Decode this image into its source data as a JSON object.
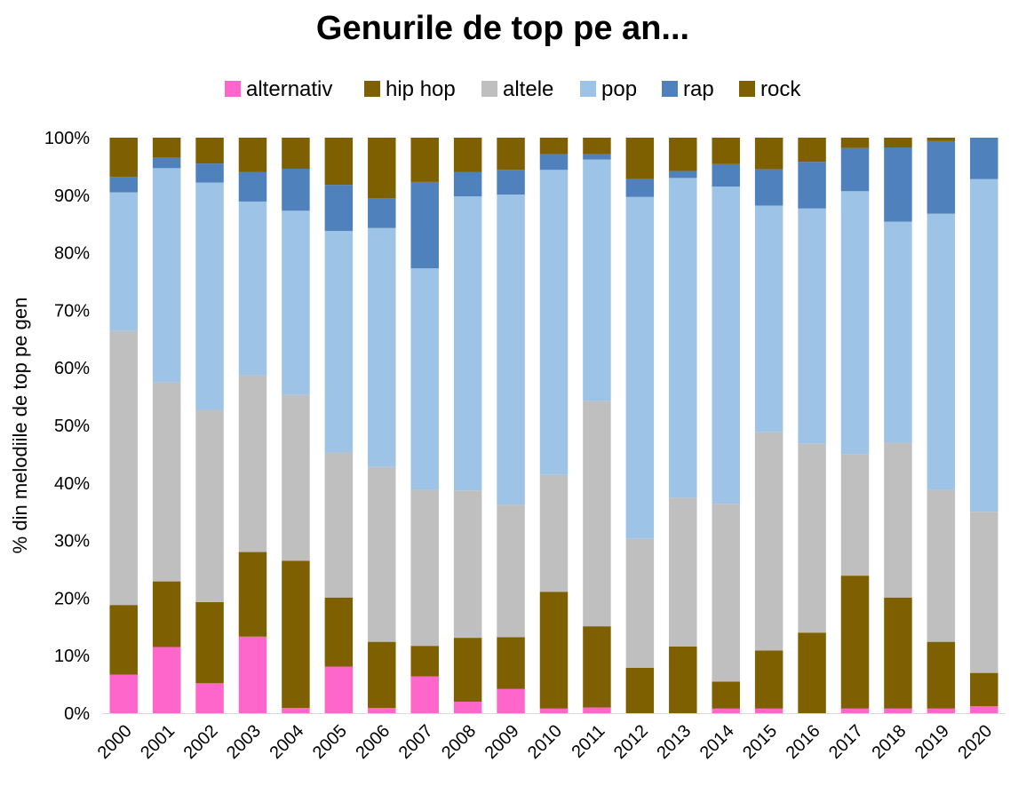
{
  "chart_data": {
    "type": "bar",
    "stacked": true,
    "title": "Genurile de top pe an...",
    "ylabel": "% din melodiile de top pe gen",
    "xlabel": "",
    "ylim": [
      0,
      100
    ],
    "yticks": [
      "0%",
      "10%",
      "20%",
      "30%",
      "40%",
      "50%",
      "60%",
      "70%",
      "80%",
      "90%",
      "100%"
    ],
    "legend_position": "top",
    "grid": false,
    "categories": [
      "2000",
      "2001",
      "2002",
      "2003",
      "2004",
      "2005",
      "2006",
      "2007",
      "2008",
      "2009",
      "2010",
      "2011",
      "2012",
      "2013",
      "2014",
      "2015",
      "2016",
      "2017",
      "2018",
      "2019",
      "2020"
    ],
    "series": [
      {
        "name": "alternativ",
        "color": "#ff66cc",
        "values": [
          6.7,
          11.5,
          5.2,
          13.3,
          0.9,
          8.1,
          0.9,
          6.4,
          2.0,
          4.2,
          0.8,
          1.0,
          0.0,
          0.0,
          0.8,
          0.8,
          0.0,
          0.8,
          0.8,
          0.8,
          1.2
        ]
      },
      {
        "name": "hip hop",
        "color": "#7f6000",
        "values": [
          12.1,
          11.4,
          14.1,
          14.7,
          25.6,
          12.0,
          11.5,
          5.3,
          11.1,
          9.0,
          20.3,
          14.1,
          7.9,
          11.6,
          4.7,
          10.1,
          14.0,
          23.1,
          19.3,
          11.6,
          5.8
        ]
      },
      {
        "name": "altele",
        "color": "#bfbfbf",
        "values": [
          47.6,
          34.6,
          33.4,
          30.7,
          28.8,
          25.2,
          30.4,
          27.1,
          25.6,
          23.0,
          20.3,
          39.1,
          22.4,
          25.8,
          30.9,
          37.9,
          32.8,
          21.1,
          26.9,
          26.4,
          28.0
        ]
      },
      {
        "name": "pop",
        "color": "#9dc3e6",
        "values": [
          24.1,
          37.2,
          39.5,
          30.2,
          32.0,
          38.5,
          41.5,
          38.5,
          51.1,
          53.9,
          53.0,
          42.0,
          59.4,
          55.6,
          55.1,
          39.4,
          40.9,
          45.7,
          38.4,
          48.0,
          57.8
        ]
      },
      {
        "name": "rap",
        "color": "#4f81bd",
        "values": [
          2.7,
          1.8,
          3.3,
          5.1,
          7.3,
          8.0,
          5.2,
          15.0,
          4.2,
          4.3,
          2.7,
          0.9,
          3.1,
          1.2,
          3.9,
          6.3,
          8.1,
          7.5,
          12.9,
          12.6,
          7.2
        ]
      },
      {
        "name": "rock",
        "color": "#7f6000",
        "values": [
          6.8,
          3.5,
          4.5,
          6.0,
          5.4,
          8.2,
          10.5,
          7.7,
          6.0,
          5.6,
          2.9,
          2.9,
          7.2,
          5.8,
          4.6,
          5.5,
          4.2,
          1.8,
          1.7,
          0.6,
          0.0
        ]
      }
    ]
  }
}
